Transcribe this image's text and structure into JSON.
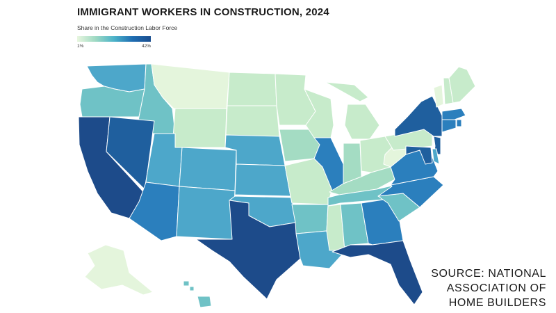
{
  "chart_data": {
    "type": "choropleth",
    "title": "IMMIGRANT WORKERS IN CONSTRUCTION, 2024",
    "subtitle": "Share in the Construction Labor Force",
    "legend": {
      "min_label": "1%",
      "max_label": "42%",
      "min": 1,
      "max": 42
    },
    "colors": {
      "c1": "#e4f5dc",
      "c2": "#c7ebcb",
      "c3": "#a4dcc3",
      "c4": "#6fc2c6",
      "c5": "#4da7ca",
      "c6": "#2b7fbd",
      "c7": "#1f5f9e",
      "c8": "#1d4b8a"
    },
    "states": [
      {
        "id": "WA",
        "level": 5
      },
      {
        "id": "OR",
        "level": 4
      },
      {
        "id": "CA",
        "level": 8
      },
      {
        "id": "ID",
        "level": 4
      },
      {
        "id": "NV",
        "level": 7
      },
      {
        "id": "MT",
        "level": 1
      },
      {
        "id": "WY",
        "level": 2
      },
      {
        "id": "UT",
        "level": 5
      },
      {
        "id": "AZ",
        "level": 6
      },
      {
        "id": "CO",
        "level": 5
      },
      {
        "id": "NM",
        "level": 5
      },
      {
        "id": "ND",
        "level": 2
      },
      {
        "id": "SD",
        "level": 2
      },
      {
        "id": "NE",
        "level": 5
      },
      {
        "id": "KS",
        "level": 5
      },
      {
        "id": "OK",
        "level": 5
      },
      {
        "id": "TX",
        "level": 8
      },
      {
        "id": "MN",
        "level": 2
      },
      {
        "id": "IA",
        "level": 3
      },
      {
        "id": "MO",
        "level": 2
      },
      {
        "id": "AR",
        "level": 4
      },
      {
        "id": "LA",
        "level": 5
      },
      {
        "id": "WI",
        "level": 2
      },
      {
        "id": "IL",
        "level": 6
      },
      {
        "id": "MI",
        "level": 2
      },
      {
        "id": "IN",
        "level": 3
      },
      {
        "id": "OH",
        "level": 2
      },
      {
        "id": "KY",
        "level": 3
      },
      {
        "id": "TN",
        "level": 4
      },
      {
        "id": "MS",
        "level": 2
      },
      {
        "id": "AL",
        "level": 4
      },
      {
        "id": "GA",
        "level": 6
      },
      {
        "id": "FL",
        "level": 8
      },
      {
        "id": "SC",
        "level": 4
      },
      {
        "id": "NC",
        "level": 6
      },
      {
        "id": "VA",
        "level": 6
      },
      {
        "id": "WV",
        "level": 1
      },
      {
        "id": "PA",
        "level": 2
      },
      {
        "id": "NY",
        "level": 7
      },
      {
        "id": "VT",
        "level": 1
      },
      {
        "id": "NH",
        "level": 2
      },
      {
        "id": "ME",
        "level": 2
      },
      {
        "id": "MA",
        "level": 6
      },
      {
        "id": "RI",
        "level": 6
      },
      {
        "id": "CT",
        "level": 6
      },
      {
        "id": "NJ",
        "level": 7
      },
      {
        "id": "DE",
        "level": 5
      },
      {
        "id": "MD",
        "level": 7
      },
      {
        "id": "AK",
        "level": 1
      },
      {
        "id": "HI",
        "level": 4
      }
    ]
  },
  "source": {
    "line1": "SOURCE: NATIONAL",
    "line2": "ASSOCIATION OF",
    "line3": "HOME BUILDERS"
  }
}
